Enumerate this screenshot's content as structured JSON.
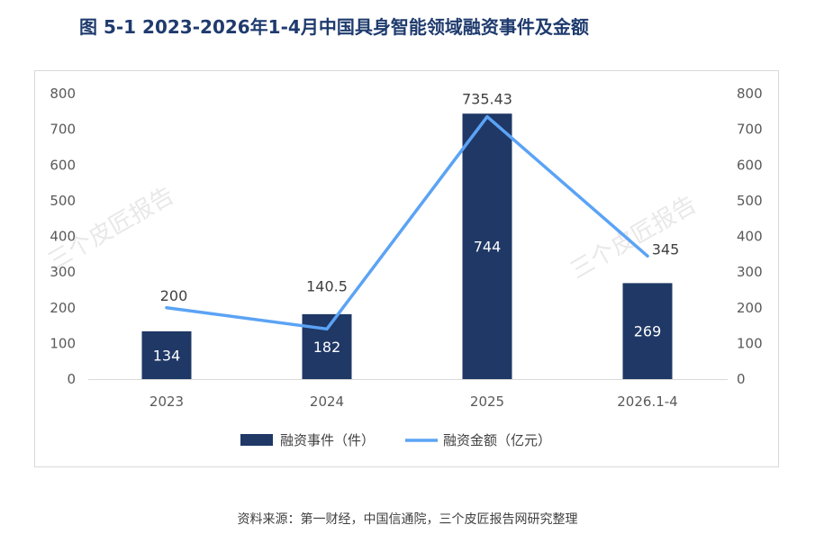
{
  "title": "图  5-1 2023-2026年1-4月中国具身智能领域融资事件及金额",
  "source": "资料来源：第一财经，中国信通院，三个皮匠报告网研究整理",
  "watermark": "三个皮匠报告",
  "colors": {
    "bar": "#1f3866",
    "line": "#5ba3f5",
    "title": "#1f3b6e"
  },
  "chart_data": {
    "type": "bar",
    "categories": [
      "2023",
      "2024",
      "2025",
      "2026.1-4"
    ],
    "series": [
      {
        "name": "融资事件（件）",
        "type": "bar",
        "axis": "left",
        "values": [
          134,
          182,
          744,
          269
        ],
        "labels": [
          "134",
          "182",
          "744",
          "269"
        ]
      },
      {
        "name": "融资金额（亿元）",
        "type": "line",
        "axis": "right",
        "values": [
          200,
          140.5,
          735.43,
          345
        ],
        "labels": [
          "200",
          "140.5",
          "735.43",
          "345"
        ]
      }
    ],
    "y_left": {
      "ylim": [
        0,
        800
      ],
      "ticks": [
        0,
        100,
        200,
        300,
        400,
        500,
        600,
        700,
        800
      ]
    },
    "y_right": {
      "ylim": [
        0,
        800
      ],
      "ticks": [
        0,
        100,
        200,
        300,
        400,
        500,
        600,
        700,
        800
      ]
    },
    "grid": false,
    "legend": "bottom"
  }
}
